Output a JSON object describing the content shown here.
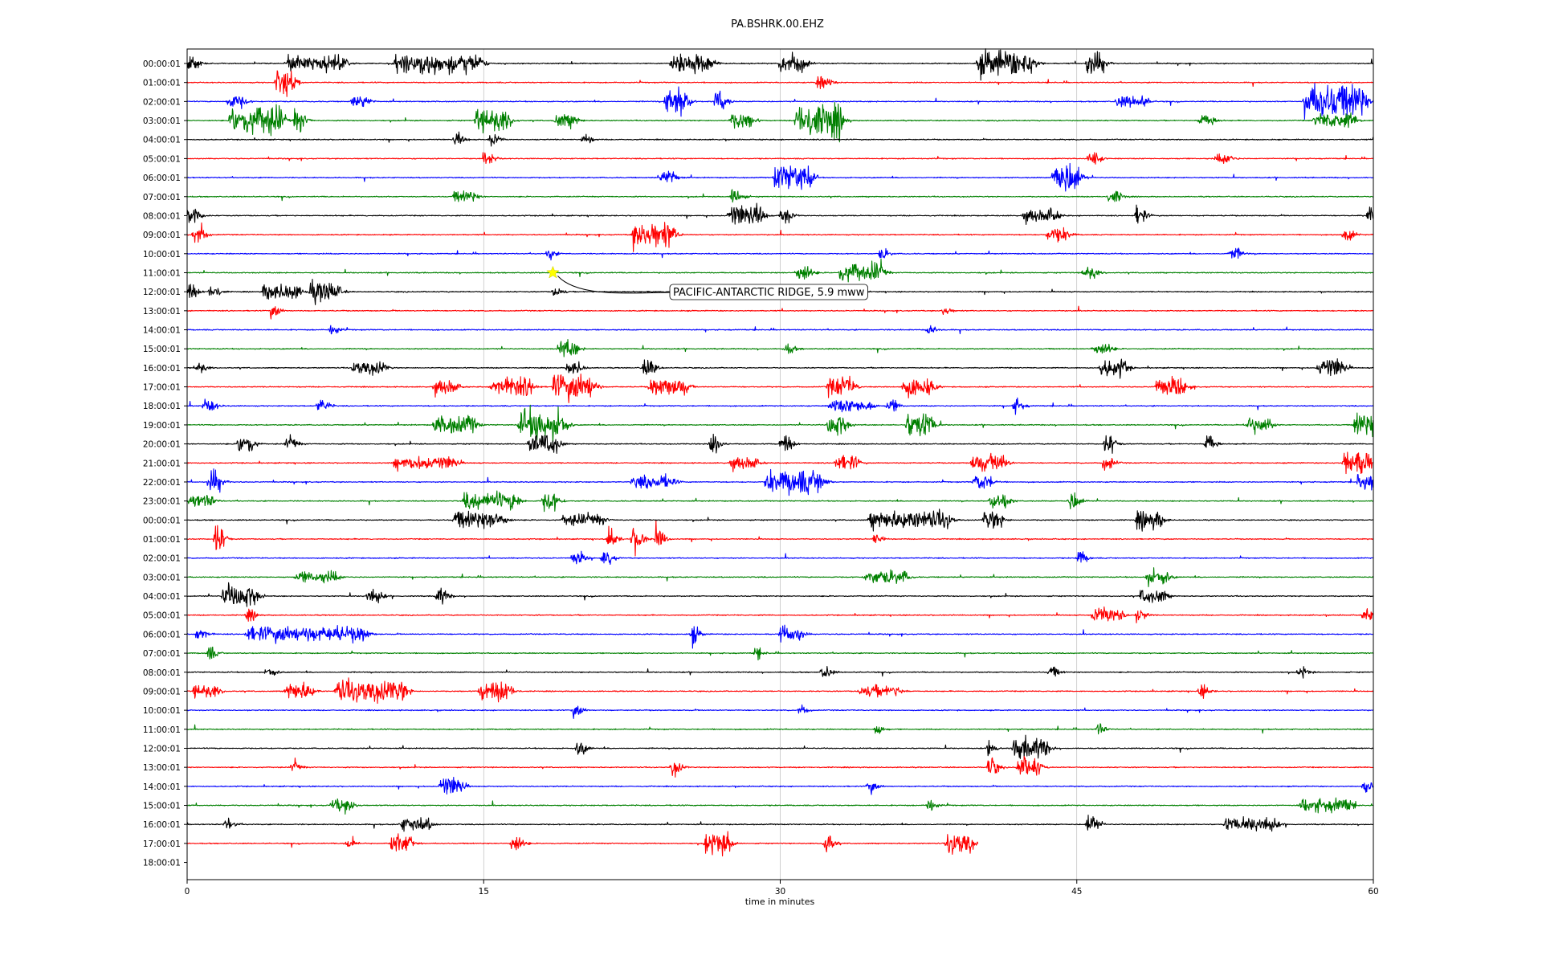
{
  "chart_data": {
    "type": "line",
    "title": "PA.BSHRK.00.EHZ",
    "xlabel": "time in minutes",
    "ylabel": "",
    "xlim": [
      0,
      60
    ],
    "x_ticks": [
      0,
      15,
      30,
      45,
      60
    ],
    "x_tick_labels": [
      "0",
      "15",
      "30",
      "45",
      "60"
    ],
    "grid": "vertical lines at 15, 30, 45",
    "line_colors": [
      "#000000",
      "#ff0000",
      "#0000ff",
      "#008000"
    ],
    "row_labels": [
      "00:00:01",
      "01:00:01",
      "02:00:01",
      "03:00:01",
      "04:00:01",
      "05:00:01",
      "06:00:01",
      "07:00:01",
      "08:00:01",
      "09:00:01",
      "10:00:01",
      "11:00:01",
      "12:00:01",
      "13:00:01",
      "14:00:01",
      "15:00:01",
      "16:00:01",
      "17:00:01",
      "18:00:01",
      "19:00:01",
      "20:00:01",
      "21:00:01",
      "22:00:01",
      "23:00:01",
      "00:00:01",
      "01:00:01",
      "02:00:01",
      "03:00:01",
      "04:00:01",
      "05:00:01",
      "06:00:01",
      "07:00:01",
      "08:00:01",
      "09:00:01",
      "10:00:01",
      "11:00:01",
      "12:00:01",
      "13:00:01",
      "14:00:01",
      "15:00:01",
      "16:00:01",
      "17:00:01",
      "18:00:01"
    ],
    "last_trace_end_minute": 40,
    "event_marker": {
      "row": 11,
      "minute": 18.5,
      "color": "#ffff00",
      "shape": "star"
    },
    "annotation": "PACIFIC-ANTARCTIC RIDGE, 5.9 mww",
    "bursts": [
      [
        [
          0,
          0.4,
          0.8
        ],
        [
          5,
          3,
          0.7
        ],
        [
          10.5,
          3,
          0.9
        ],
        [
          13.8,
          1,
          0.9
        ],
        [
          24.5,
          2,
          0.9
        ],
        [
          30,
          1.2,
          0.9
        ],
        [
          40,
          2,
          1.2
        ],
        [
          42.3,
          0.5,
          1
        ],
        [
          45.5,
          0.8,
          1.1
        ]
      ],
      [
        [
          4.5,
          0.8,
          1.3
        ],
        [
          31.8,
          0.6,
          0.6
        ]
      ],
      [
        [
          2,
          0.8,
          0.6
        ],
        [
          8.3,
          0.8,
          0.5
        ],
        [
          24.2,
          1,
          1.5
        ],
        [
          26.7,
          0.4,
          1.1
        ],
        [
          47,
          1.5,
          0.5
        ],
        [
          56.5,
          3,
          1.6
        ]
      ],
      [
        [
          2.2,
          2.5,
          1.4
        ],
        [
          5.4,
          0.4,
          1.1
        ],
        [
          14.6,
          1.6,
          1.1
        ],
        [
          18.6,
          1,
          0.6
        ],
        [
          27.5,
          1,
          0.7
        ],
        [
          30.8,
          2.2,
          1.6
        ],
        [
          57,
          2,
          0.7
        ],
        [
          51.2,
          0.6,
          0.6
        ]
      ],
      [
        [
          13.5,
          0.3,
          0.6
        ],
        [
          15.3,
          0.3,
          0.6
        ],
        [
          20,
          0.2,
          0.7
        ]
      ],
      [
        [
          15,
          0.4,
          0.5
        ],
        [
          45.6,
          0.4,
          0.7
        ],
        [
          52,
          0.8,
          0.4
        ]
      ],
      [
        [
          24,
          0.6,
          0.7
        ],
        [
          29.7,
          1.8,
          1.2
        ],
        [
          43.8,
          1.2,
          1.6
        ]
      ],
      [
        [
          13.5,
          1,
          0.5
        ],
        [
          27.5,
          0.4,
          0.8
        ],
        [
          46.6,
          0.5,
          0.6
        ]
      ],
      [
        [
          0,
          0.5,
          0.8
        ],
        [
          27.4,
          1.6,
          1
        ],
        [
          30,
          0.4,
          0.8
        ],
        [
          42.3,
          1.6,
          0.6
        ],
        [
          48,
          0.3,
          1
        ],
        [
          59.7,
          0.3,
          1
        ]
      ],
      [
        [
          0.3,
          0.4,
          1.1
        ],
        [
          22.5,
          2,
          1.2
        ],
        [
          43.5,
          1,
          0.6
        ],
        [
          58.5,
          0.3,
          0.7
        ]
      ],
      [
        [
          18.2,
          0.2,
          0.6
        ],
        [
          35,
          0.3,
          0.5
        ],
        [
          52.7,
          0.5,
          0.5
        ]
      ],
      [
        [
          30.8,
          0.6,
          0.9
        ],
        [
          33,
          1.2,
          0.9
        ],
        [
          34.5,
          0.6,
          0.9
        ],
        [
          45.3,
          0.6,
          0.6
        ]
      ],
      [
        [
          0,
          0.3,
          0.8
        ],
        [
          1.1,
          0.4,
          0.6
        ],
        [
          3.8,
          1.8,
          0.7
        ],
        [
          6.2,
          1.4,
          0.9
        ],
        [
          18.5,
          0.3,
          0.5
        ]
      ],
      [
        [
          4.2,
          0.3,
          0.6
        ],
        [
          38.2,
          0.2,
          0.5
        ]
      ],
      [
        [
          7.2,
          0.3,
          0.5
        ],
        [
          37.4,
          0.3,
          0.4
        ]
      ],
      [
        [
          18.8,
          0.8,
          0.8
        ],
        [
          30.2,
          0.4,
          0.4
        ],
        [
          45.8,
          0.8,
          0.6
        ]
      ],
      [
        [
          0.4,
          0.4,
          0.5
        ],
        [
          8.4,
          1.5,
          0.6
        ],
        [
          19.2,
          0.6,
          0.6
        ],
        [
          23,
          0.6,
          0.7
        ],
        [
          46.2,
          1.2,
          0.8
        ],
        [
          57.2,
          1.2,
          0.9
        ]
      ],
      [
        [
          12.5,
          1,
          0.7
        ],
        [
          15.4,
          2,
          0.9
        ],
        [
          18.5,
          2,
          1.2
        ],
        [
          23.4,
          1.8,
          0.8
        ],
        [
          32.4,
          1.2,
          0.9
        ],
        [
          36.2,
          1.4,
          0.9
        ],
        [
          49,
          1.4,
          0.8
        ]
      ],
      [
        [
          0.8,
          0.5,
          0.6
        ],
        [
          6.6,
          0.4,
          0.6
        ],
        [
          32.5,
          2,
          0.6
        ],
        [
          35.4,
          0.4,
          0.6
        ],
        [
          41.8,
          0.3,
          0.7
        ]
      ],
      [
        [
          12.5,
          2,
          0.8
        ],
        [
          16.8,
          2.2,
          1.4
        ],
        [
          32.4,
          0.8,
          1.1
        ],
        [
          36.4,
          1.2,
          1.2
        ],
        [
          53.5,
          1.2,
          0.7
        ],
        [
          59,
          1,
          1.1
        ]
      ],
      [
        [
          2.6,
          0.6,
          1.1
        ],
        [
          5,
          0.4,
          0.6
        ],
        [
          17.3,
          1.4,
          0.9
        ],
        [
          26.4,
          0.4,
          1.3
        ],
        [
          30,
          0.4,
          0.9
        ],
        [
          46.4,
          0.4,
          0.9
        ],
        [
          51.5,
          0.3,
          1
        ]
      ],
      [
        [
          10.5,
          3,
          0.6
        ],
        [
          27.5,
          1.2,
          0.6
        ],
        [
          32.8,
          1,
          0.7
        ],
        [
          39.7,
          1.6,
          0.8
        ],
        [
          46.3,
          0.4,
          0.7
        ],
        [
          58.5,
          1.2,
          1.3
        ]
      ],
      [
        [
          1.1,
          0.5,
          1.2
        ],
        [
          22.5,
          2,
          0.6
        ],
        [
          29.3,
          2.8,
          1.1
        ],
        [
          39.8,
          0.8,
          0.7
        ],
        [
          59.2,
          0.8,
          0.8
        ]
      ],
      [
        [
          0,
          1.2,
          0.6
        ],
        [
          14,
          2,
          0.8
        ],
        [
          16.3,
          0.4,
          0.8
        ],
        [
          18,
          0.6,
          0.9
        ],
        [
          40.6,
          0.8,
          0.8
        ],
        [
          44.6,
          0.4,
          0.9
        ]
      ],
      [
        [
          13.5,
          2.5,
          0.8
        ],
        [
          19,
          2,
          0.5
        ],
        [
          34.5,
          4,
          0.8
        ],
        [
          40.3,
          0.8,
          0.9
        ],
        [
          48,
          1.2,
          0.8
        ]
      ],
      [
        [
          1.4,
          0.3,
          1.5
        ],
        [
          21.3,
          0.2,
          1.2
        ],
        [
          22.5,
          0.4,
          1.2
        ],
        [
          23.7,
          0.2,
          1.4
        ],
        [
          34.7,
          0.3,
          0.5
        ]
      ],
      [
        [
          19.5,
          0.4,
          0.6
        ],
        [
          21,
          0.4,
          0.6
        ],
        [
          45,
          0.3,
          0.7
        ]
      ],
      [
        [
          5.5,
          2,
          0.5
        ],
        [
          34.3,
          2,
          0.6
        ],
        [
          48.5,
          1,
          0.7
        ]
      ],
      [
        [
          1.8,
          1.6,
          1.1
        ],
        [
          9.1,
          0.6,
          0.6
        ],
        [
          12.6,
          0.4,
          0.8
        ],
        [
          48.2,
          1.2,
          0.6
        ]
      ],
      [
        [
          3,
          0.3,
          0.5
        ],
        [
          45.8,
          1.4,
          0.7
        ],
        [
          48,
          0.3,
          0.6
        ],
        [
          59.5,
          0.3,
          0.7
        ]
      ],
      [
        [
          0.5,
          0.3,
          0.8
        ],
        [
          3,
          6,
          0.7
        ],
        [
          30,
          1,
          0.7
        ],
        [
          25.5,
          0.2,
          1
        ]
      ],
      [
        [
          1,
          0.3,
          0.6
        ],
        [
          28.7,
          0.2,
          0.5
        ]
      ],
      [
        [
          4,
          0.3,
          0.5
        ],
        [
          32.1,
          0.3,
          0.6
        ],
        [
          43.6,
          0.3,
          0.5
        ],
        [
          56.2,
          0.3,
          0.5
        ]
      ],
      [
        [
          0.3,
          1.2,
          0.6
        ],
        [
          5,
          1.2,
          0.8
        ],
        [
          7.5,
          3.5,
          1
        ],
        [
          14.8,
          1.5,
          0.9
        ],
        [
          34,
          2,
          0.5
        ],
        [
          51.2,
          0.3,
          0.6
        ]
      ],
      [
        [
          19.5,
          0.3,
          0.6
        ],
        [
          30.9,
          0.3,
          0.4
        ]
      ],
      [
        [
          34.8,
          0.2,
          0.5
        ],
        [
          46,
          0.2,
          0.6
        ]
      ],
      [
        [
          19.7,
          0.3,
          0.7
        ],
        [
          40.5,
          0.2,
          0.8
        ],
        [
          41.8,
          1.6,
          1
        ]
      ],
      [
        [
          5.3,
          0.2,
          0.6
        ],
        [
          24.5,
          0.3,
          0.8
        ],
        [
          40.5,
          0.3,
          1
        ],
        [
          42,
          1,
          1
        ]
      ],
      [
        [
          12.8,
          1,
          0.9
        ],
        [
          34.4,
          0.3,
          0.6
        ],
        [
          59.5,
          0.3,
          0.7
        ]
      ],
      [
        [
          7.3,
          1,
          0.6
        ],
        [
          37.4,
          0.3,
          0.6
        ],
        [
          56.3,
          2.5,
          0.6
        ]
      ],
      [
        [
          1.9,
          0.3,
          0.5
        ],
        [
          10.8,
          1.4,
          0.6
        ],
        [
          45.5,
          0.4,
          0.9
        ],
        [
          52.5,
          2.5,
          0.6
        ]
      ],
      [
        [
          8,
          0.4,
          0.5
        ],
        [
          10.3,
          1,
          0.9
        ],
        [
          16.4,
          0.4,
          0.9
        ],
        [
          26.2,
          1.2,
          1
        ],
        [
          32.2,
          0.3,
          1
        ],
        [
          38.4,
          1.2,
          1
        ]
      ],
      []
    ]
  }
}
